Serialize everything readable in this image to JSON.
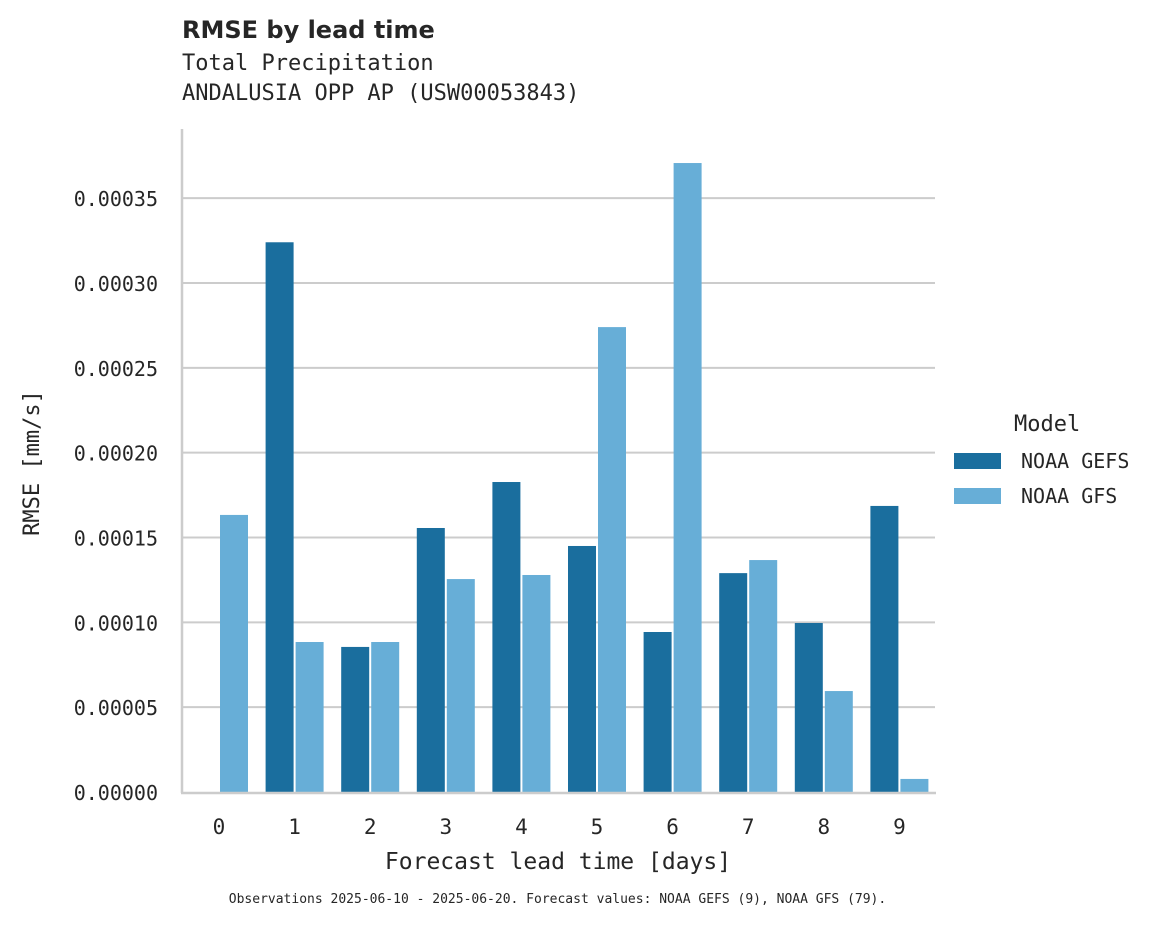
{
  "header": {
    "title": "RMSE by lead time",
    "subtitle_line1": "Total Precipitation",
    "subtitle_line2": "ANDALUSIA OPP AP (USW00053843)"
  },
  "footnote": "Observations 2025-06-10 - 2025-06-20. Forecast values: NOAA GEFS (9), NOAA GFS (79).",
  "legend": {
    "title": "Model",
    "items": [
      {
        "label": "NOAA GEFS",
        "color": "#1a6e9e"
      },
      {
        "label": "NOAA GFS",
        "color": "#67aed7"
      }
    ]
  },
  "chart_data": {
    "type": "bar",
    "title": "RMSE by lead time",
    "subtitle": "Total Precipitation — ANDALUSIA OPP AP (USW00053843)",
    "xlabel": "Forecast lead time [days]",
    "ylabel": "RMSE [mm/s]",
    "categories": [
      "0",
      "1",
      "2",
      "3",
      "4",
      "5",
      "6",
      "7",
      "8",
      "9"
    ],
    "series": [
      {
        "name": "NOAA GEFS",
        "color": "#1a6e9e",
        "values": [
          null,
          0.000324,
          8.55e-05,
          0.0001556,
          0.0001827,
          0.000145,
          9.43e-05,
          0.000129,
          9.96e-05,
          0.0001686
        ]
      },
      {
        "name": "NOAA GFS",
        "color": "#67aed7",
        "values": [
          0.0001633,
          8.84e-05,
          8.84e-05,
          0.0001255,
          0.0001279,
          0.000274,
          0.0003707,
          0.0001367,
          5.95e-05,
          7.7e-06
        ]
      }
    ],
    "yticks": [
      "0.00000",
      "0.00005",
      "0.00010",
      "0.00015",
      "0.00020",
      "0.00025",
      "0.00030",
      "0.00035"
    ],
    "ytick_values": [
      0,
      5e-05,
      0.0001,
      0.00015,
      0.0002,
      0.00025,
      0.0003,
      0.00035
    ],
    "ylim": [
      0,
      0.00039
    ],
    "grid": "horizontal",
    "legend_position": "right"
  }
}
